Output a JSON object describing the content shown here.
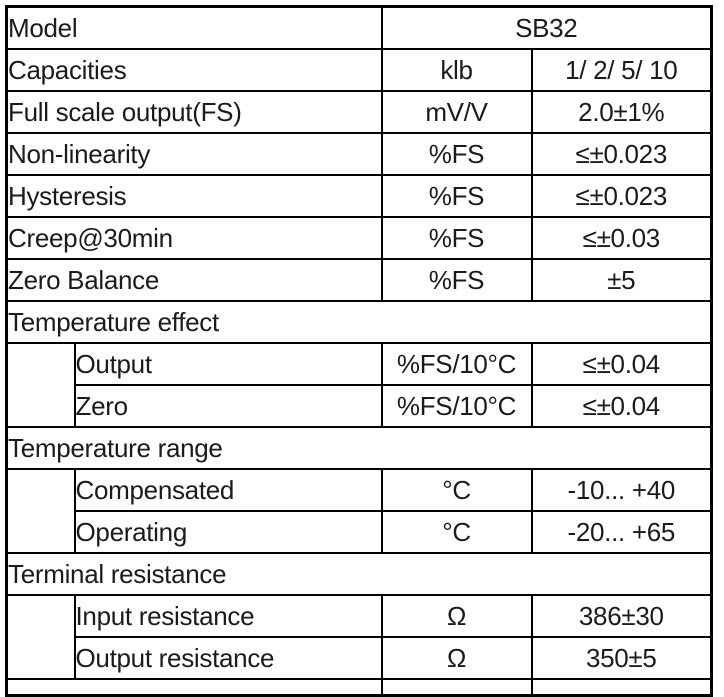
{
  "colors": {
    "border": "#000000",
    "text": "#1b1b1d",
    "background": "#ffffff"
  },
  "table": {
    "rows": {
      "model": {
        "param": "Model",
        "value": "SB32"
      },
      "capacities": {
        "param": "Capacities",
        "unit": "klb",
        "value": "1/ 2/ 5/ 10"
      },
      "full_scale_output": {
        "param": "Full scale output(FS)",
        "unit": "mV/V",
        "value": "2.0±1%"
      },
      "non_linearity": {
        "param": "Non-linearity",
        "unit": "%FS",
        "value": "≤±0.023"
      },
      "hysteresis": {
        "param": "Hysteresis",
        "unit": "%FS",
        "value": "≤±0.023"
      },
      "creep": {
        "param": "Creep@30min",
        "unit": "%FS",
        "value": "≤±0.03"
      },
      "zero_balance": {
        "param": "Zero Balance",
        "unit": "%FS",
        "value": "±5"
      },
      "temperature_effect": {
        "section": "Temperature effect"
      },
      "temp_output": {
        "param": "Output",
        "unit": "%FS/10°C",
        "value": "≤±0.04"
      },
      "temp_zero": {
        "param": "Zero",
        "unit": "%FS/10°C",
        "value": "≤±0.04"
      },
      "temperature_range": {
        "section": "Temperature range"
      },
      "compensated": {
        "param": "Compensated",
        "unit": "°C",
        "value": "-10... +40"
      },
      "operating": {
        "param": "Operating",
        "unit": "°C",
        "value": "-20... +65"
      },
      "terminal_resistance": {
        "section": "Terminal resistance"
      },
      "input_resistance": {
        "param": "Input resistance",
        "unit": "Ω",
        "value": "386±30"
      },
      "output_resistance": {
        "param": "Output resistance",
        "unit": "Ω",
        "value": "350±5"
      }
    }
  }
}
